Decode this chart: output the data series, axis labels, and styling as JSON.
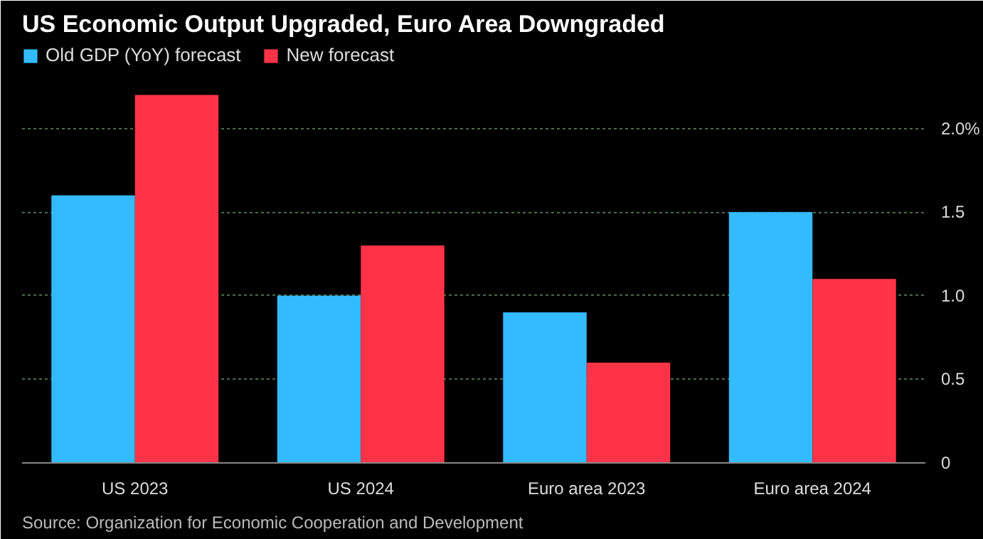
{
  "chart_data": {
    "type": "bar",
    "title": "US Economic Output Upgraded, Euro Area Downgraded",
    "categories": [
      "US 2023",
      "US 2024",
      "Euro area 2023",
      "Euro area 2024"
    ],
    "series": [
      {
        "name": "Old GDP (YoY) forecast",
        "color": "#33bbff",
        "values": [
          1.6,
          1.0,
          0.9,
          1.5
        ]
      },
      {
        "name": "New forecast",
        "color": "#ff3347",
        "values": [
          2.2,
          1.3,
          0.6,
          1.1
        ]
      }
    ],
    "ylim": [
      0,
      2.5
    ],
    "yticks": [
      0,
      0.5,
      {
        "value": 1,
        "label": "1.0"
      },
      1.5,
      {
        "value": 2.0,
        "label": "2.0%"
      }
    ],
    "grid": "y",
    "legend": "top left",
    "annotations": [
      "Source: Organization for Economic Cooperation and Development"
    ]
  }
}
